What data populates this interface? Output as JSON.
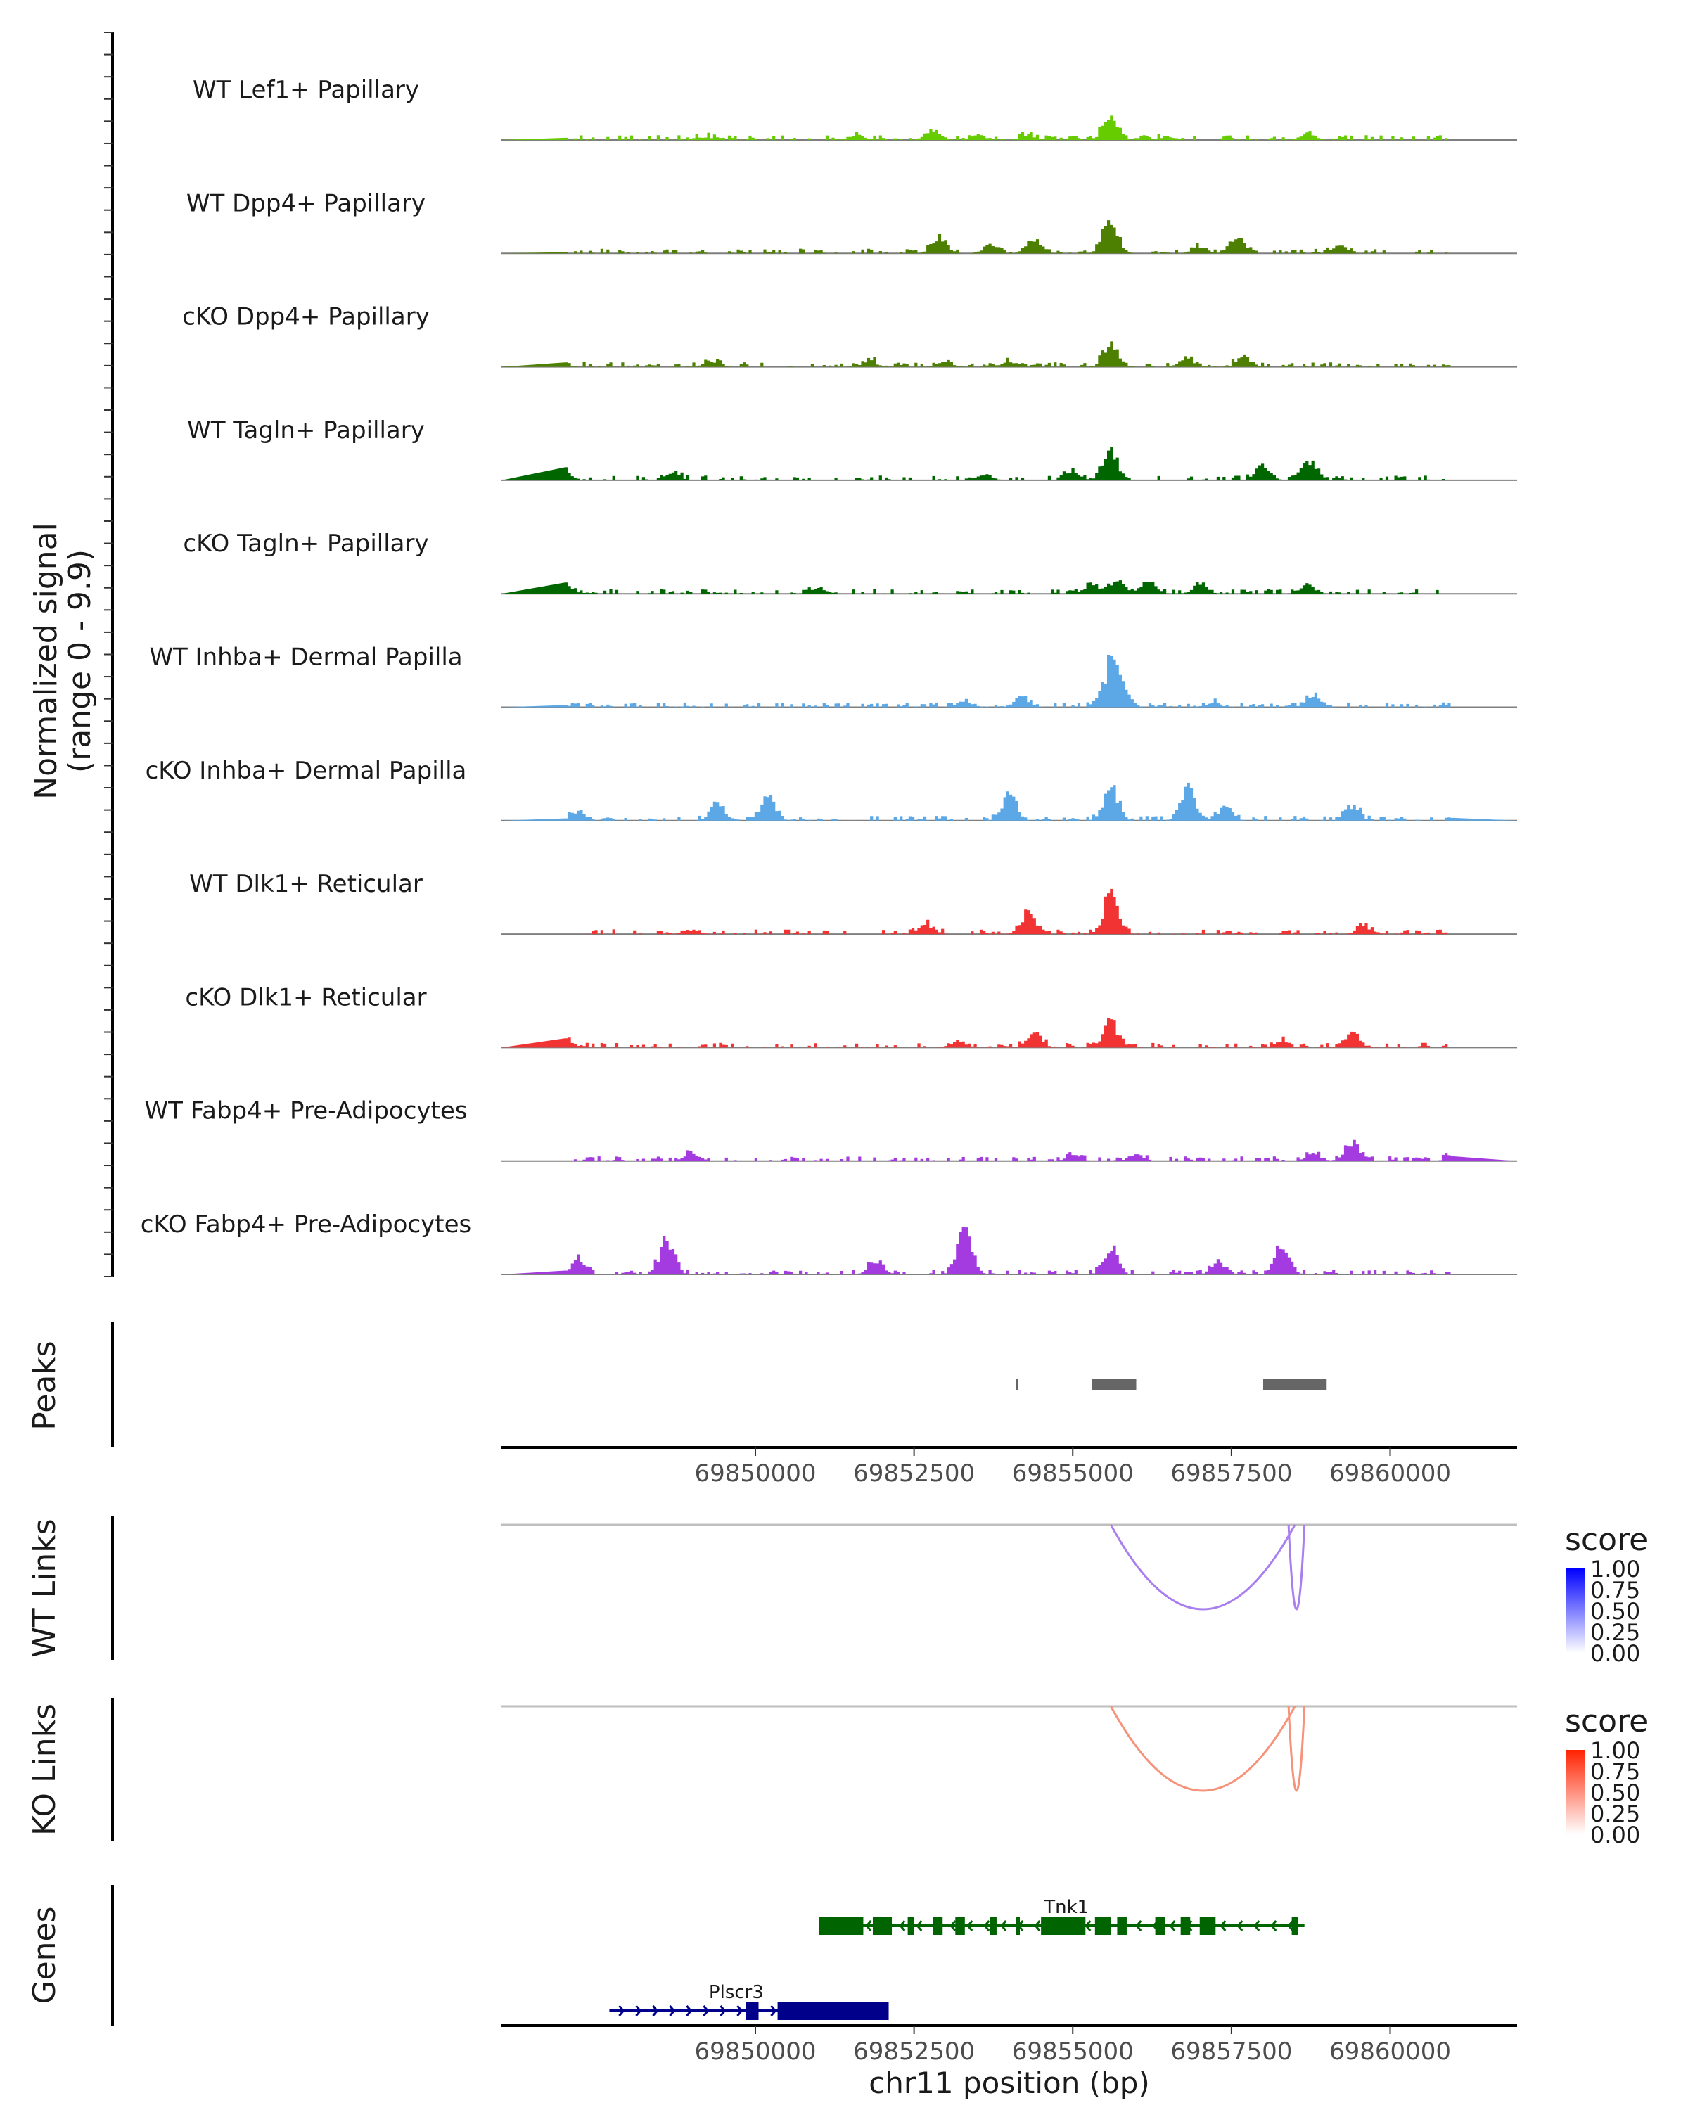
{
  "chart_data": {
    "type": "area",
    "title": "",
    "region": "chr11",
    "xlabel": "chr11 position (bp)",
    "xlim": [
      69846000,
      69862000
    ],
    "xticks": [
      69850000,
      69852500,
      69855000,
      69857500,
      69860000
    ],
    "xtick_labels": [
      "69850000",
      "69852500",
      "69855000",
      "69857500",
      "69860000"
    ],
    "coverage": {
      "ylabel": "Normalized signal",
      "ylabel_range": "(range 0 - 9.9)",
      "ylim": [
        0,
        9.9
      ],
      "tracks": [
        {
          "name": "WT Lef1+ Papillary",
          "color": "#66CC00",
          "peaks": [
            [
              69852800,
              1.5
            ],
            [
              69855600,
              3.8
            ],
            [
              69853500,
              0.7
            ],
            [
              69854300,
              0.7
            ],
            [
              69858700,
              0.8
            ],
            [
              69849200,
              0.4
            ],
            [
              69851600,
              0.6
            ],
            [
              69856500,
              0.5
            ]
          ]
        },
        {
          "name": "WT Dpp4+ Papillary",
          "color": "#4D8000",
          "peaks": [
            [
              69852900,
              2.3
            ],
            [
              69855600,
              5.0
            ],
            [
              69854400,
              2.1
            ],
            [
              69857600,
              2.2
            ],
            [
              69853700,
              1.2
            ],
            [
              69859200,
              1.1
            ],
            [
              69857000,
              0.9
            ]
          ]
        },
        {
          "name": "cKO Dpp4+ Papillary",
          "color": "#4D8000",
          "peaks": [
            [
              69855600,
              3.2
            ],
            [
              69846900,
              1.1
            ],
            [
              69849300,
              0.8
            ],
            [
              69851800,
              0.8
            ],
            [
              69854000,
              0.8
            ],
            [
              69856800,
              1.2
            ],
            [
              69857700,
              1.4
            ],
            [
              69853000,
              0.7
            ]
          ]
        },
        {
          "name": "WT Tagln+ Papillary",
          "color": "#006600",
          "peaks": [
            [
              69855600,
              4.2
            ],
            [
              69847000,
              1.1
            ],
            [
              69848700,
              1.1
            ],
            [
              69858000,
              2.0
            ],
            [
              69858700,
              3.0
            ],
            [
              69853600,
              0.9
            ],
            [
              69855000,
              1.2
            ]
          ]
        },
        {
          "name": "cKO Tagln+ Papillary",
          "color": "#006600",
          "peaks": [
            [
              69855700,
              2.0
            ],
            [
              69856200,
              1.9
            ],
            [
              69847000,
              1.3
            ],
            [
              69855300,
              1.2
            ],
            [
              69857000,
              1.1
            ],
            [
              69858700,
              1.2
            ],
            [
              69851000,
              0.9
            ]
          ]
        },
        {
          "name": "WT Inhba+ Dermal Papilla",
          "color": "#5CA8E6",
          "peaks": [
            [
              69855600,
              6.0
            ],
            [
              69855800,
              2.0
            ],
            [
              69854200,
              1.5
            ],
            [
              69858800,
              1.8
            ],
            [
              69853300,
              0.8
            ],
            [
              69857200,
              0.6
            ]
          ]
        },
        {
          "name": "cKO Inhba+ Dermal Papilla",
          "color": "#5CA8E6",
          "peaks": [
            [
              69855600,
              4.8
            ],
            [
              69856800,
              4.6
            ],
            [
              69854000,
              3.5
            ],
            [
              69849400,
              2.5
            ],
            [
              69850200,
              3.3
            ],
            [
              69847200,
              1.3
            ],
            [
              69857400,
              2.0
            ],
            [
              69859400,
              2.0
            ]
          ]
        },
        {
          "name": "WT Dlk1+ Reticular",
          "color": "#F23333",
          "peaks": [
            [
              69855600,
              5.5
            ],
            [
              69854300,
              3.0
            ],
            [
              69852700,
              1.4
            ],
            [
              69859600,
              1.1
            ],
            [
              69849000,
              0.6
            ],
            [
              69861500,
              0.6
            ]
          ]
        },
        {
          "name": "cKO Dlk1+ Reticular",
          "color": "#F23333",
          "peaks": [
            [
              69855600,
              3.8
            ],
            [
              69854400,
              2.2
            ],
            [
              69847000,
              1.2
            ],
            [
              69859400,
              2.1
            ],
            [
              69853200,
              1.0
            ],
            [
              69858300,
              0.9
            ]
          ]
        },
        {
          "name": "WT Fabp4+ Pre-Adipocytes",
          "color": "#A33BE0",
          "peaks": [
            [
              69859400,
              2.5
            ],
            [
              69849000,
              1.3
            ],
            [
              69856000,
              1.0
            ],
            [
              69858800,
              1.0
            ],
            [
              69855000,
              0.8
            ],
            [
              69861000,
              0.8
            ]
          ]
        },
        {
          "name": "cKO Fabp4+ Pre-Adipocytes",
          "color": "#A33BE0",
          "peaks": [
            [
              69853300,
              6.5
            ],
            [
              69848600,
              4.8
            ],
            [
              69858300,
              4.6
            ],
            [
              69851900,
              2.1
            ],
            [
              69855600,
              3.5
            ],
            [
              69847200,
              2.0
            ],
            [
              69857300,
              1.9
            ]
          ]
        }
      ]
    },
    "peaks_track": {
      "label": "Peaks",
      "color": "#666666",
      "ranges": [
        [
          69854100,
          69854140
        ],
        [
          69855300,
          69856000
        ],
        [
          69858000,
          69859000
        ]
      ]
    },
    "links": [
      {
        "label": "WT Links",
        "color": "#A97FF0",
        "arcs": [
          [
            69855600,
            69858500
          ],
          [
            69858400,
            69858650
          ]
        ],
        "legend": {
          "title": "score",
          "ticks": [
            "1.00",
            "0.75",
            "0.50",
            "0.25",
            "0.00"
          ],
          "colors": [
            "#0000FF",
            "#FFFFFF"
          ]
        }
      },
      {
        "label": "KO Links",
        "color": "#F6937A",
        "arcs": [
          [
            69855600,
            69858500
          ],
          [
            69858400,
            69858650
          ]
        ],
        "legend": {
          "title": "score",
          "ticks": [
            "1.00",
            "0.75",
            "0.50",
            "0.25",
            "0.00"
          ],
          "colors": [
            "#FF2200",
            "#FFFFFF"
          ]
        }
      }
    ],
    "genes_track": {
      "label": "Genes",
      "genes": [
        {
          "name": "Tnk1",
          "strand": "-",
          "color": "#006400",
          "start": 69851000,
          "end": 69858650,
          "exons": [
            [
              69851000,
              69851700
            ],
            [
              69851850,
              69852150
            ],
            [
              69852400,
              69852500
            ],
            [
              69852800,
              69852950
            ],
            [
              69853150,
              69853300
            ],
            [
              69853700,
              69853800
            ],
            [
              69854100,
              69854150
            ],
            [
              69854500,
              69855200
            ],
            [
              69855350,
              69855600
            ],
            [
              69855700,
              69855850
            ],
            [
              69856300,
              69856450
            ],
            [
              69856700,
              69856850
            ],
            [
              69857000,
              69857250
            ],
            [
              69858450,
              69858550
            ]
          ]
        },
        {
          "name": "Plscr3",
          "strand": "+",
          "color": "#00008B",
          "start": 69847700,
          "end": 69852100,
          "exons": [
            [
              69849850,
              69850050
            ],
            [
              69850350,
              69852100
            ]
          ]
        }
      ]
    }
  }
}
